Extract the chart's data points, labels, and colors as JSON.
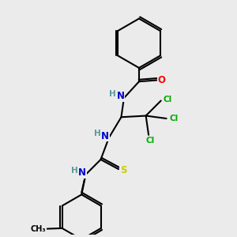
{
  "bg_color": "#ebebeb",
  "bond_color": "#000000",
  "bond_width": 1.5,
  "atom_colors": {
    "N": "#0000cd",
    "O": "#ff0000",
    "S": "#cccc00",
    "Cl": "#00aa00",
    "C": "#000000",
    "H": "#5a9a9a"
  },
  "font_size_main": 8.5,
  "font_size_small": 7.5,
  "font_size_h": 7.5
}
